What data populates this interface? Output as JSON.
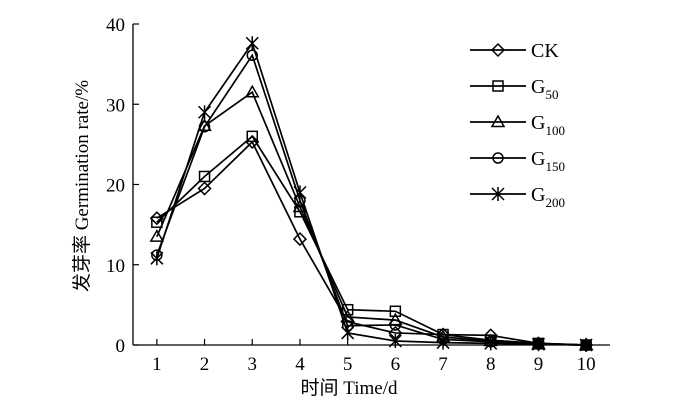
{
  "chart_data": {
    "type": "line",
    "title": "",
    "xlabel": "时间 Time/d",
    "ylabel": "发芽率 Germination rate/%",
    "x": [
      1,
      2,
      3,
      4,
      5,
      6,
      7,
      8,
      9,
      10
    ],
    "xlim": [
      0.5,
      10.5
    ],
    "ylim": [
      0,
      40
    ],
    "xticks": [
      "1",
      "2",
      "3",
      "4",
      "5",
      "6",
      "7",
      "8",
      "9",
      "10"
    ],
    "yticks": [
      "0",
      "10",
      "20",
      "30",
      "40"
    ],
    "grid": false,
    "legend_position": "top-right",
    "series": [
      {
        "name": "CK",
        "marker": "diamond",
        "values": [
          15.8,
          19.5,
          25.3,
          13.2,
          2.9,
          1.5,
          1.3,
          1.2,
          0.2,
          0
        ]
      },
      {
        "name": "G",
        "subscript": "50",
        "marker": "square",
        "values": [
          15.3,
          21.0,
          26.0,
          16.6,
          4.4,
          4.2,
          1.3,
          0.6,
          0.2,
          0
        ]
      },
      {
        "name": "G",
        "subscript": "100",
        "marker": "triangle",
        "values": [
          13.5,
          27.3,
          31.5,
          17.2,
          3.5,
          3.1,
          1.0,
          0.5,
          0.1,
          0
        ]
      },
      {
        "name": "G",
        "subscript": "150",
        "marker": "circle",
        "values": [
          11.2,
          27.2,
          36.1,
          18.0,
          2.4,
          2.5,
          0.7,
          0.4,
          0.1,
          0
        ]
      },
      {
        "name": "G",
        "subscript": "200",
        "marker": "star",
        "values": [
          10.8,
          29.0,
          37.6,
          19.0,
          1.5,
          0.5,
          0.3,
          0.2,
          0.1,
          0
        ]
      }
    ]
  }
}
